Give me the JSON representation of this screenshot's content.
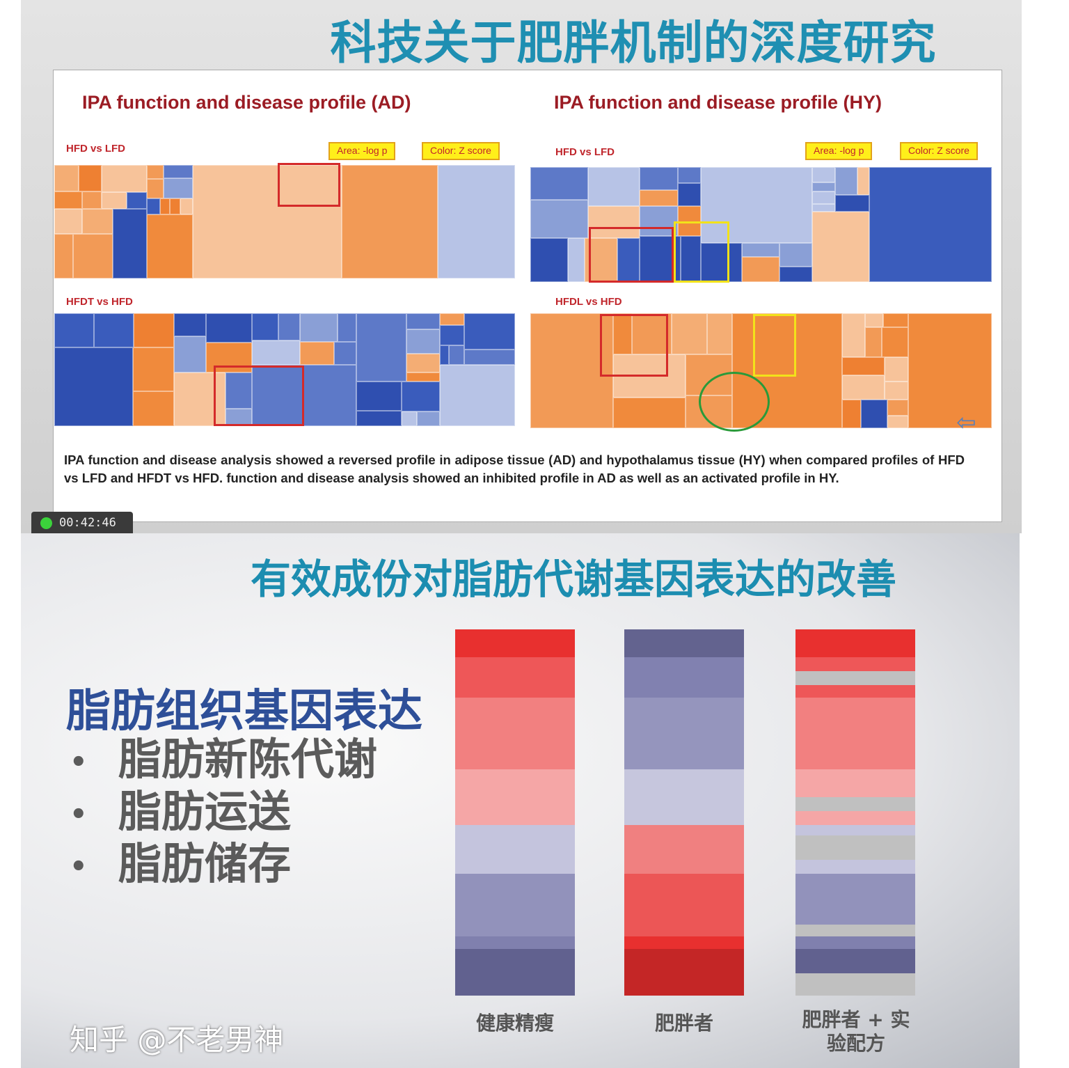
{
  "top_slide": {
    "title": "科技关于肥胖机制的深度研究",
    "left_title": "IPA function and disease profile (AD)",
    "right_title": "IPA function and disease profile (HY)",
    "legend_area": "Area: -log p",
    "legend_color": "Color: Z score",
    "panels": [
      {
        "label": "HFD vs LFD",
        "tissue": "AD",
        "dominant": "orange"
      },
      {
        "label": "HFDT vs HFD",
        "tissue": "AD",
        "dominant": "blue"
      },
      {
        "label": "HFD vs LFD",
        "tissue": "HY",
        "dominant": "blue"
      },
      {
        "label": "HFDL vs HFD",
        "tissue": "HY",
        "dominant": "orange"
      }
    ],
    "caption": "IPA function and disease analysis showed a reversed profile in adipose tissue (AD) and hypothalamus tissue (HY) when compared profiles of HFD vs LFD and HFDT vs HFD. function and disease analysis showed an inhibited profile in AD as well as an activated profile in HY.",
    "timer": "00:42:46"
  },
  "bottom_slide": {
    "title": "有效成份对脂肪代谢基因表达的改善",
    "heading": "脂肪组织基因表达",
    "bullets": [
      "脂肪新陈代谢",
      "脂肪运送",
      "脂肪储存"
    ],
    "bullet_symbol": "•",
    "columns": [
      {
        "label": "健康精瘦",
        "segments": [
          [
            40,
            "#e8302f"
          ],
          [
            58,
            "#ee5758"
          ],
          [
            103,
            "#f28080"
          ],
          [
            80,
            "#f5a6a6"
          ],
          [
            70,
            "#c4c4dd"
          ],
          [
            90,
            "#9292bb"
          ],
          [
            18,
            "#8080ae"
          ],
          [
            67,
            "#61618f"
          ]
        ]
      },
      {
        "label": "肥胖者",
        "segments": [
          [
            40,
            "#63638f"
          ],
          [
            58,
            "#8181b0"
          ],
          [
            103,
            "#9595bd"
          ],
          [
            80,
            "#c6c6dd"
          ],
          [
            70,
            "#f08080"
          ],
          [
            90,
            "#ec5656"
          ],
          [
            18,
            "#e8302f"
          ],
          [
            67,
            "#c42626"
          ]
        ]
      },
      {
        "label": "肥胖者 + 实验配方",
        "segments": [
          [
            40,
            "#e8302f"
          ],
          [
            20,
            "#ee5758"
          ],
          [
            20,
            "#c0c0c0"
          ],
          [
            18,
            "#ee5758"
          ],
          [
            103,
            "#f28080"
          ],
          [
            40,
            "#f5a6a6"
          ],
          [
            20,
            "#c0c0c0"
          ],
          [
            20,
            "#f5a6a6"
          ],
          [
            15,
            "#c4c4dd"
          ],
          [
            35,
            "#c0c0c0"
          ],
          [
            20,
            "#c4c4dd"
          ],
          [
            73,
            "#9292bb"
          ],
          [
            17,
            "#c0c0c0"
          ],
          [
            18,
            "#8080ae"
          ],
          [
            35,
            "#61618f"
          ],
          [
            32,
            "#c0c0c0"
          ]
        ]
      }
    ]
  },
  "watermark": "知乎 @不老男神"
}
